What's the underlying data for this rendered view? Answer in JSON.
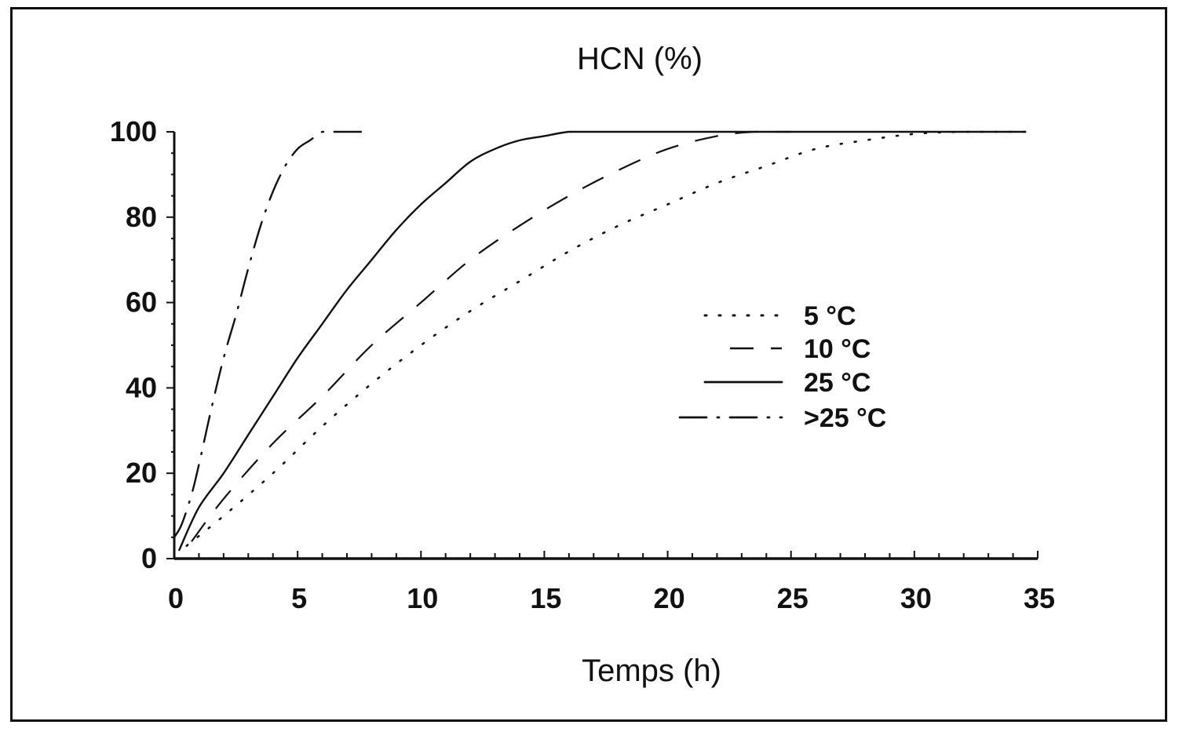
{
  "chart_data": {
    "type": "line",
    "title": "HCN (%)",
    "xlabel": "Temps (h)",
    "ylabel": "",
    "xlim": [
      0,
      35
    ],
    "ylim": [
      0,
      100
    ],
    "xticks": [
      0,
      5,
      10,
      15,
      20,
      25,
      30,
      35
    ],
    "yticks": [
      0,
      20,
      40,
      60,
      80,
      100
    ],
    "grid": false,
    "legend_position": "right",
    "series": [
      {
        "name": "5 °C",
        "style": "dotted",
        "x": [
          0.5,
          2,
          4,
          6,
          8,
          10,
          12,
          14,
          16,
          18,
          20,
          22,
          24,
          26,
          28,
          30,
          32,
          34.5
        ],
        "y": [
          3,
          10,
          20,
          31,
          41,
          50,
          58,
          65,
          72,
          78,
          83,
          88,
          92,
          96,
          98,
          99.5,
          100,
          100
        ]
      },
      {
        "name": "10 °C",
        "style": "dashed",
        "x": [
          0.7,
          2,
          4,
          6,
          8,
          10,
          12,
          14,
          16,
          18,
          20,
          22,
          23.5,
          25
        ],
        "y": [
          4,
          14,
          27,
          38,
          50,
          60,
          70,
          78,
          85,
          91,
          96,
          99,
          100,
          100
        ]
      },
      {
        "name": "25 °C",
        "style": "solid",
        "x": [
          0.2,
          1,
          2,
          3,
          4,
          5,
          6,
          7,
          8,
          9,
          10,
          11,
          12,
          13,
          14,
          15,
          16,
          17,
          20,
          25,
          30,
          34.5
        ],
        "y": [
          2,
          12,
          20,
          29,
          38,
          47,
          55,
          63,
          70,
          77,
          83,
          88,
          93,
          96,
          98,
          99,
          100,
          100,
          100,
          100,
          100,
          100
        ]
      },
      {
        "name": ">25 °C",
        "style": "dash-dot",
        "x": [
          0,
          0.3,
          0.7,
          1,
          1.5,
          2,
          2.5,
          3,
          3.5,
          4,
          4.5,
          5,
          5.5,
          6,
          6.5,
          8
        ],
        "y": [
          5,
          8,
          15,
          22,
          35,
          47,
          57,
          68,
          78,
          86,
          92,
          96,
          98,
          100,
          100,
          100
        ]
      }
    ]
  }
}
